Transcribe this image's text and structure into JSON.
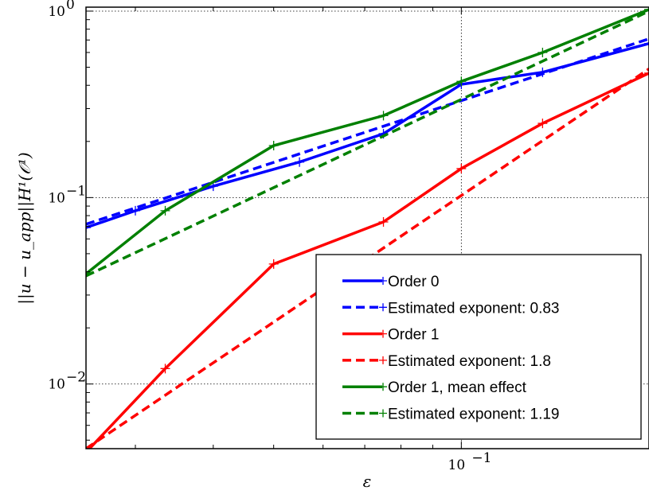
{
  "chart_data": {
    "type": "line",
    "xscale": "log",
    "yscale": "log",
    "xlim": [
      0.025,
      0.2
    ],
    "ylim": [
      0.0045,
      1.05
    ],
    "x_ticks": [
      {
        "value": 0.1,
        "label": "10",
        "exp": "−1"
      }
    ],
    "y_ticks": [
      {
        "value": 1,
        "label": "10",
        "exp": "0"
      },
      {
        "value": 0.1,
        "label": "10",
        "exp": "−1"
      },
      {
        "value": 0.01,
        "label": "10",
        "exp": "−2"
      }
    ],
    "xlabel": "ε",
    "ylabel": "||u − u_app||H¹(𝒪¹)",
    "grid": true,
    "legend_position": "lower right",
    "series": [
      {
        "name": "Order 0",
        "color": "#0000ff",
        "style": "solid",
        "marker": "+",
        "x": [
          0.025,
          0.03,
          0.04,
          0.055,
          0.075,
          0.1,
          0.135,
          0.2
        ],
        "y": [
          0.069,
          0.085,
          0.115,
          0.155,
          0.22,
          0.405,
          0.47,
          0.67
        ]
      },
      {
        "name": "Estimated exponent: 0.83",
        "color": "#0000ff",
        "style": "dashed",
        "marker": "+",
        "x": [
          0.025,
          0.2
        ],
        "y": [
          0.072,
          0.71
        ]
      },
      {
        "name": "Order 1",
        "color": "#ff0000",
        "style": "solid",
        "marker": "+",
        "x": [
          0.025,
          0.0335,
          0.05,
          0.075,
          0.1,
          0.135,
          0.2
        ],
        "y": [
          0.0043,
          0.0121,
          0.044,
          0.074,
          0.143,
          0.25,
          0.465
        ]
      },
      {
        "name": "Estimated exponent: 1.8",
        "color": "#ff0000",
        "style": "dashed",
        "marker": "+",
        "x": [
          0.025,
          0.2
        ],
        "y": [
          0.0045,
          0.49
        ]
      },
      {
        "name": "Order 1, mean effect",
        "color": "#008000",
        "style": "solid",
        "marker": "+",
        "x": [
          0.025,
          0.0335,
          0.05,
          0.075,
          0.1,
          0.135,
          0.2
        ],
        "y": [
          0.039,
          0.085,
          0.19,
          0.275,
          0.42,
          0.6,
          1.02
        ]
      },
      {
        "name": "Estimated exponent: 1.19",
        "color": "#008000",
        "style": "dashed",
        "marker": "+",
        "x": [
          0.025,
          0.2
        ],
        "y": [
          0.038,
          1.0
        ]
      }
    ]
  }
}
